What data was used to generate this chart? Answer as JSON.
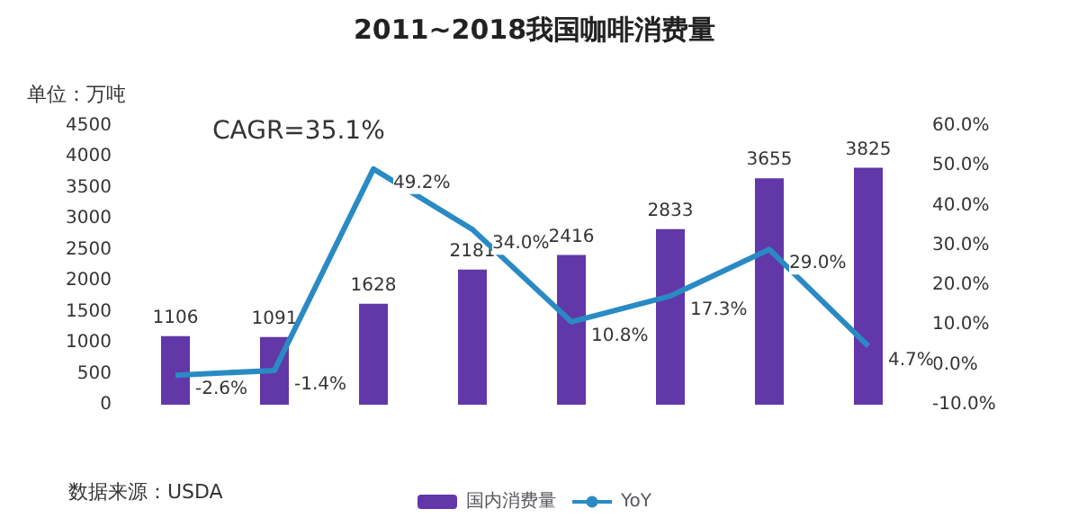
{
  "chart_data": {
    "type": "bar",
    "title": "2011~2018我国咖啡消费量",
    "ylabel": "单位：万吨",
    "annotations": [
      "CAGR=35.1%",
      "数据来源：USDA"
    ],
    "categories": [
      null,
      null,
      null,
      null,
      null,
      null,
      null,
      null
    ],
    "series": [
      {
        "name": "国内消费量",
        "color": "#6237a8",
        "values": [
          1106,
          1091,
          1628,
          2181,
          2416,
          2833,
          3655,
          3825
        ],
        "value_labels": [
          "1106",
          "1091",
          "1628",
          "2181",
          "2416",
          "2833",
          "3655",
          "3825"
        ]
      },
      {
        "name": "YoY",
        "type": "line",
        "axis": "y2",
        "color": "#2a8ac4",
        "values": [
          -2.6,
          -1.4,
          49.2,
          34.0,
          10.8,
          17.3,
          29.0,
          4.7
        ],
        "value_labels": [
          "-2.6%",
          "-1.4%",
          "49.2%",
          "34.0%",
          "10.8%",
          "17.3%",
          "29.0%",
          "4.7%"
        ]
      }
    ],
    "ylim": [
      0,
      4500
    ],
    "yticks": [
      0,
      500,
      1000,
      1500,
      2000,
      2500,
      3000,
      3500,
      4000,
      4500
    ],
    "y2lim": [
      -10,
      60
    ],
    "y2ticks": [
      {
        "value": -10,
        "label": "-10.0%"
      },
      {
        "value": 0,
        "label": "0.0%"
      },
      {
        "value": 10,
        "label": "10.0%"
      },
      {
        "value": 20,
        "label": "20.0%"
      },
      {
        "value": 30,
        "label": "30.0%"
      },
      {
        "value": 40,
        "label": "40.0%"
      },
      {
        "value": 50,
        "label": "50.0%"
      },
      {
        "value": 60,
        "label": "60.0%"
      }
    ],
    "grid": false,
    "legend": "bottom",
    "marker": "none",
    "line_style": "solid"
  }
}
